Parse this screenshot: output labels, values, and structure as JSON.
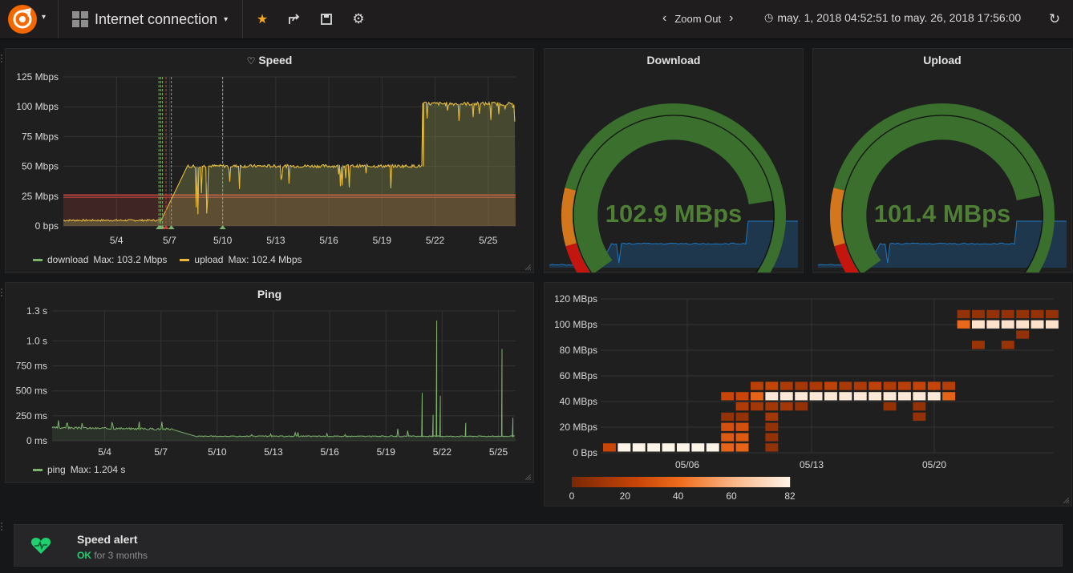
{
  "nav": {
    "dashboard_title": "Internet connection",
    "zoom_out_label": "Zoom Out",
    "time_range": "may. 1, 2018 04:52:51 to may. 26, 2018 17:56:00"
  },
  "panels": {
    "speed": {
      "title": "Speed",
      "y_ticks": [
        "125 Mbps",
        "100 Mbps",
        "75 Mbps",
        "50 Mbps",
        "25 Mbps",
        "0 bps"
      ],
      "x_ticks": [
        "5/4",
        "5/7",
        "5/10",
        "5/13",
        "5/16",
        "5/19",
        "5/22",
        "5/25"
      ],
      "legend": [
        {
          "name": "download",
          "stat": "Max: 103.2 Mbps",
          "color": "#7eb26d"
        },
        {
          "name": "upload",
          "stat": "Max: 102.4 Mbps",
          "color": "#eab839"
        }
      ]
    },
    "download": {
      "title": "Download",
      "value": "102.9 MBps"
    },
    "upload": {
      "title": "Upload",
      "value": "101.4 MBps"
    },
    "ping": {
      "title": "Ping",
      "y_ticks": [
        "1.3 s",
        "1.0 s",
        "750 ms",
        "500 ms",
        "250 ms",
        "0 ms"
      ],
      "x_ticks": [
        "5/4",
        "5/7",
        "5/10",
        "5/13",
        "5/16",
        "5/19",
        "5/22",
        "5/25"
      ],
      "legend": [
        {
          "name": "ping",
          "stat": "Max: 1.204 s",
          "color": "#7eb26d"
        }
      ]
    },
    "heatmap": {
      "y_ticks": [
        "120 MBps",
        "100 MBps",
        "80 MBps",
        "60 MBps",
        "40 MBps",
        "20 MBps",
        "0 Bps"
      ],
      "x_ticks": [
        "05/06",
        "05/13",
        "05/20"
      ],
      "scale_ticks": [
        "0",
        "20",
        "40",
        "60",
        "82"
      ]
    }
  },
  "alert": {
    "name": "Speed alert",
    "state": "OK",
    "duration": "for 3 months"
  },
  "chart_data": [
    {
      "type": "line",
      "title": "Speed",
      "x": [
        "5/1",
        "5/4",
        "5/6",
        "5/7",
        "5/8",
        "5/10",
        "5/13",
        "5/16",
        "5/19",
        "5/21",
        "5/22",
        "5/25",
        "5/26"
      ],
      "series": [
        {
          "name": "download",
          "unit": "Mbps",
          "values": [
            4,
            4,
            4,
            5,
            50,
            50,
            50,
            50,
            50,
            50,
            102,
            102,
            102
          ]
        },
        {
          "name": "upload",
          "unit": "Mbps",
          "values": [
            4,
            4,
            4,
            5,
            50,
            50,
            50,
            50,
            50,
            50,
            102,
            102,
            102
          ]
        }
      ],
      "threshold": 26,
      "ylim": [
        0,
        125
      ]
    },
    {
      "type": "line",
      "title": "Ping",
      "x": [
        "5/1",
        "5/4",
        "5/7",
        "5/8",
        "5/10",
        "5/13",
        "5/16",
        "5/19",
        "5/21",
        "5/22",
        "5/23",
        "5/24",
        "5/25",
        "5/26"
      ],
      "series": [
        {
          "name": "ping",
          "unit": "ms",
          "values": [
            130,
            120,
            115,
            40,
            45,
            45,
            45,
            45,
            60,
            1204,
            60,
            50,
            920,
            60
          ]
        }
      ],
      "ylim": [
        0,
        1300
      ]
    },
    {
      "type": "heatmap",
      "y_unit": "MBps",
      "bins": [
        "0-8",
        "8-16",
        "16-24",
        "24-32",
        "32-40",
        "40-48",
        "48-56",
        "56-64",
        "64-72",
        "72-80",
        "80-88",
        "88-96",
        "96-104",
        "104-112",
        "112-120"
      ],
      "scale_max": 82
    }
  ],
  "gauges": [
    {
      "name": "Download",
      "value": 102.9,
      "unit": "MBps",
      "max": 125,
      "thresholds": [
        10,
        25
      ]
    },
    {
      "name": "Upload",
      "value": 101.4,
      "unit": "MBps",
      "max": 125,
      "thresholds": [
        10,
        25
      ]
    }
  ],
  "colors": {
    "download": "#7eb26d",
    "upload": "#eab839",
    "gauge_green": "#3b6f2d",
    "gauge_orange": "#d4761c",
    "gauge_red": "#c4160e",
    "ok": "#1ed070",
    "heat_low": "#7a2806",
    "heat_high": "#fdf4e8"
  }
}
